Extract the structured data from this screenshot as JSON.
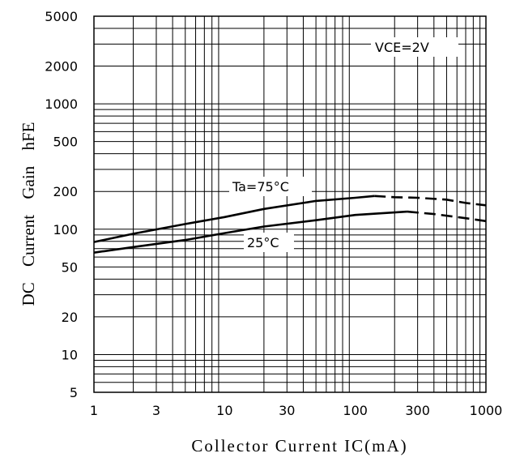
{
  "chart_data": {
    "type": "line",
    "title": "",
    "xlabel": "Collector Current IC(mA)",
    "ylabel": "DC Current Gain hFE",
    "x_scale": "log",
    "y_scale": "log",
    "xlim": [
      1,
      1000
    ],
    "ylim": [
      5,
      5000
    ],
    "grid": true,
    "x_ticks": [
      1,
      3,
      10,
      30,
      100,
      300,
      1000
    ],
    "x_tick_labels": [
      "1",
      "3",
      "10",
      "30",
      "100",
      "300",
      "1000"
    ],
    "y_ticks": [
      5,
      10,
      20,
      50,
      100,
      200,
      500,
      1000,
      2000,
      5000
    ],
    "y_tick_labels": [
      "5",
      "10",
      "20",
      "50",
      "100",
      "200",
      "500",
      "1000",
      "2000",
      "5000"
    ],
    "condition_label": "VCE=2V",
    "series": [
      {
        "label": "Ta=75°C",
        "solid": {
          "x": [
            1,
            2,
            5,
            10,
            20,
            50,
            100,
            140
          ],
          "y": [
            79,
            92,
            110,
            125,
            145,
            168,
            178,
            184
          ]
        },
        "dashed": {
          "x": [
            140,
            200,
            300,
            500,
            700,
            1000
          ],
          "y": [
            184,
            180,
            178,
            172,
            162,
            155
          ]
        }
      },
      {
        "label": "25°C",
        "solid": {
          "x": [
            1,
            2,
            5,
            10,
            20,
            50,
            100,
            250
          ],
          "y": [
            65,
            72,
            82,
            93,
            105,
            118,
            130,
            138
          ]
        },
        "dashed": {
          "x": [
            250,
            400,
            600,
            800,
            1000
          ],
          "y": [
            138,
            132,
            125,
            120,
            116
          ]
        }
      }
    ]
  }
}
